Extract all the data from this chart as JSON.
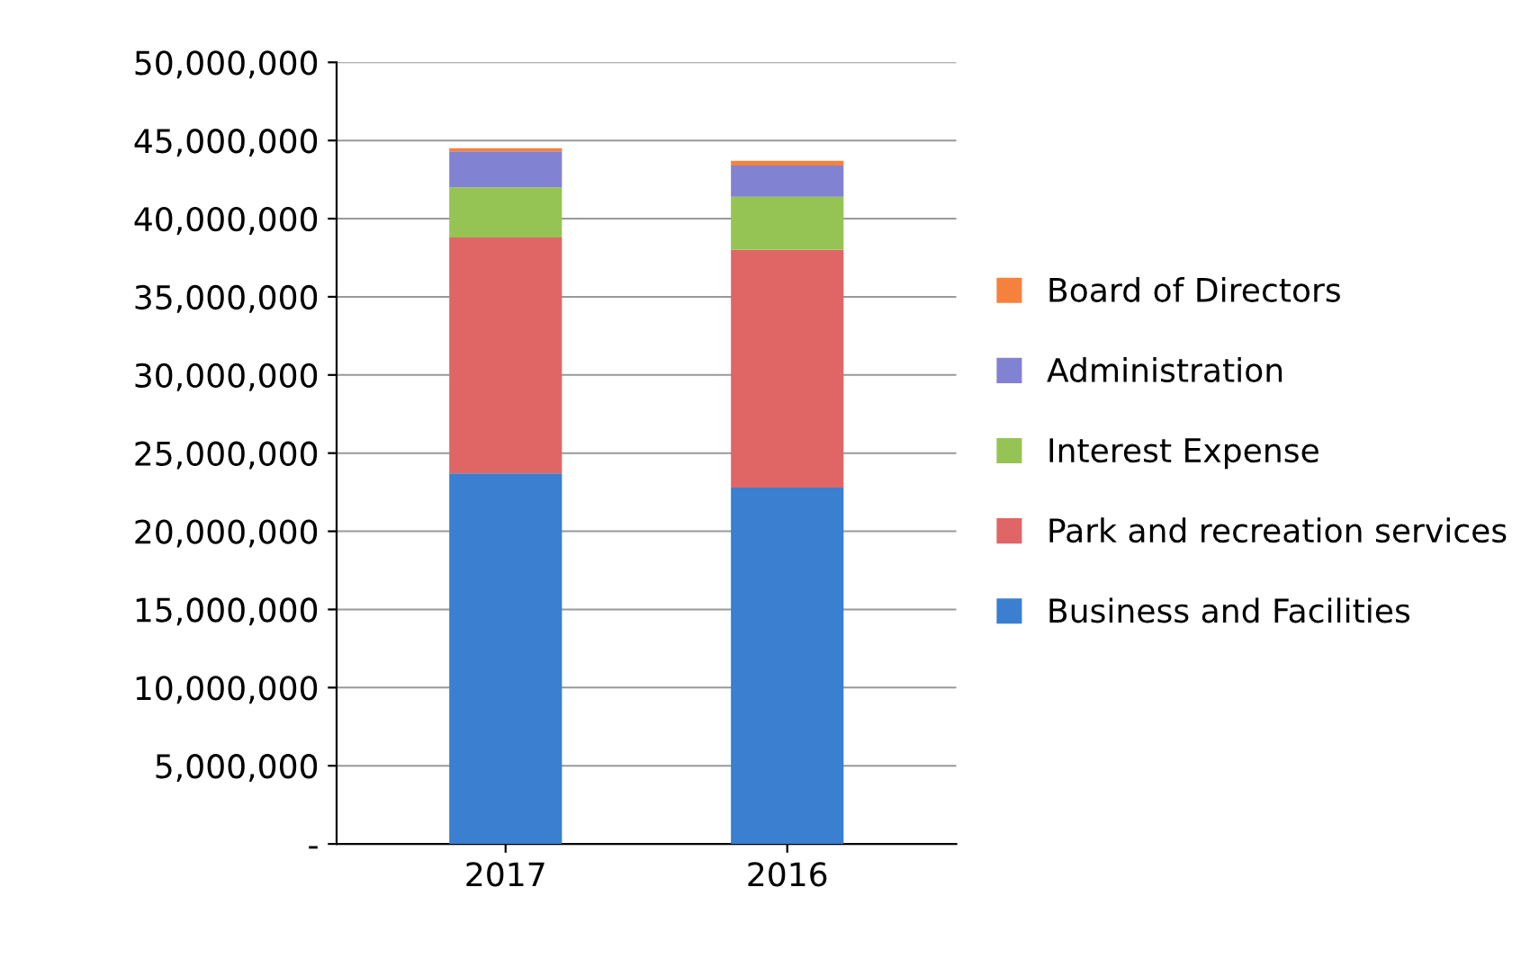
{
  "chart_data": {
    "type": "bar",
    "stacked": true,
    "categories": [
      "2017",
      "2016"
    ],
    "series": [
      {
        "name": "Business and Facilities",
        "color": "#3a7fd0",
        "values": [
          23700000,
          22800000
        ]
      },
      {
        "name": "Park and recreation services",
        "color": "#e06666",
        "values": [
          15100000,
          15200000
        ]
      },
      {
        "name": "Interest Expense",
        "color": "#96c454",
        "values": [
          3200000,
          3400000
        ]
      },
      {
        "name": "Administration",
        "color": "#8282d2",
        "values": [
          2300000,
          2000000
        ]
      },
      {
        "name": "Board of Directors",
        "color": "#f5823c",
        "values": [
          200000,
          300000
        ]
      }
    ],
    "ylim": [
      0,
      50000000
    ],
    "yticks": [
      {
        "value": 0,
        "label": "-"
      },
      {
        "value": 5000000,
        "label": "5,000,000"
      },
      {
        "value": 10000000,
        "label": "10,000,000"
      },
      {
        "value": 15000000,
        "label": "15,000,000"
      },
      {
        "value": 20000000,
        "label": "20,000,000"
      },
      {
        "value": 25000000,
        "label": "25,000,000"
      },
      {
        "value": 30000000,
        "label": "30,000,000"
      },
      {
        "value": 35000000,
        "label": "35,000,000"
      },
      {
        "value": 40000000,
        "label": "40,000,000"
      },
      {
        "value": 45000000,
        "label": "45,000,000"
      },
      {
        "value": 50000000,
        "label": "50,000,000"
      }
    ],
    "grid": "y",
    "legend": "right"
  }
}
